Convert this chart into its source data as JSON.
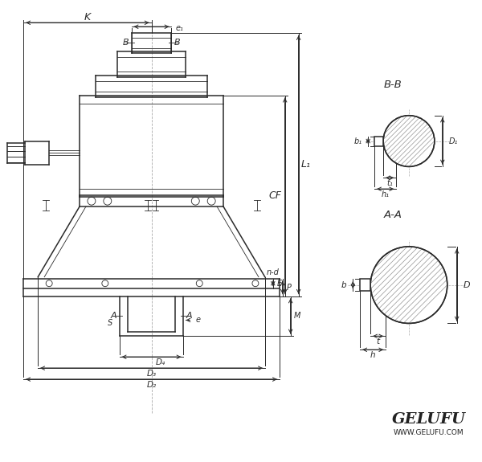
{
  "bg_color": "#ffffff",
  "line_color": "#2a2a2a",
  "dim_color": "#2a2a2a",
  "thin_color": "#555555",
  "figsize": [
    6.0,
    5.75
  ],
  "dpi": 100,
  "labels": {
    "K": "K",
    "B_left": "B",
    "B_right": "B",
    "e1": "e₁",
    "CF": "CF",
    "L1": "L₁",
    "n_d": "n-d",
    "E": "E",
    "P": "P",
    "M": "M",
    "A_left": "A",
    "A_right": "A",
    "S": "S",
    "e": "e",
    "D4": "D₄",
    "D3": "D₃",
    "D2": "D₂",
    "BB": "B-B",
    "AA": "A-A",
    "b1": "b₁",
    "t1": "t₁",
    "D1": "D₁",
    "h1": "h₁",
    "b": "b",
    "D": "D",
    "t": "t",
    "h": "h"
  },
  "gelufu": {
    "text1": "GELUFU",
    "text2": "WWW.GELUFU.COM"
  }
}
